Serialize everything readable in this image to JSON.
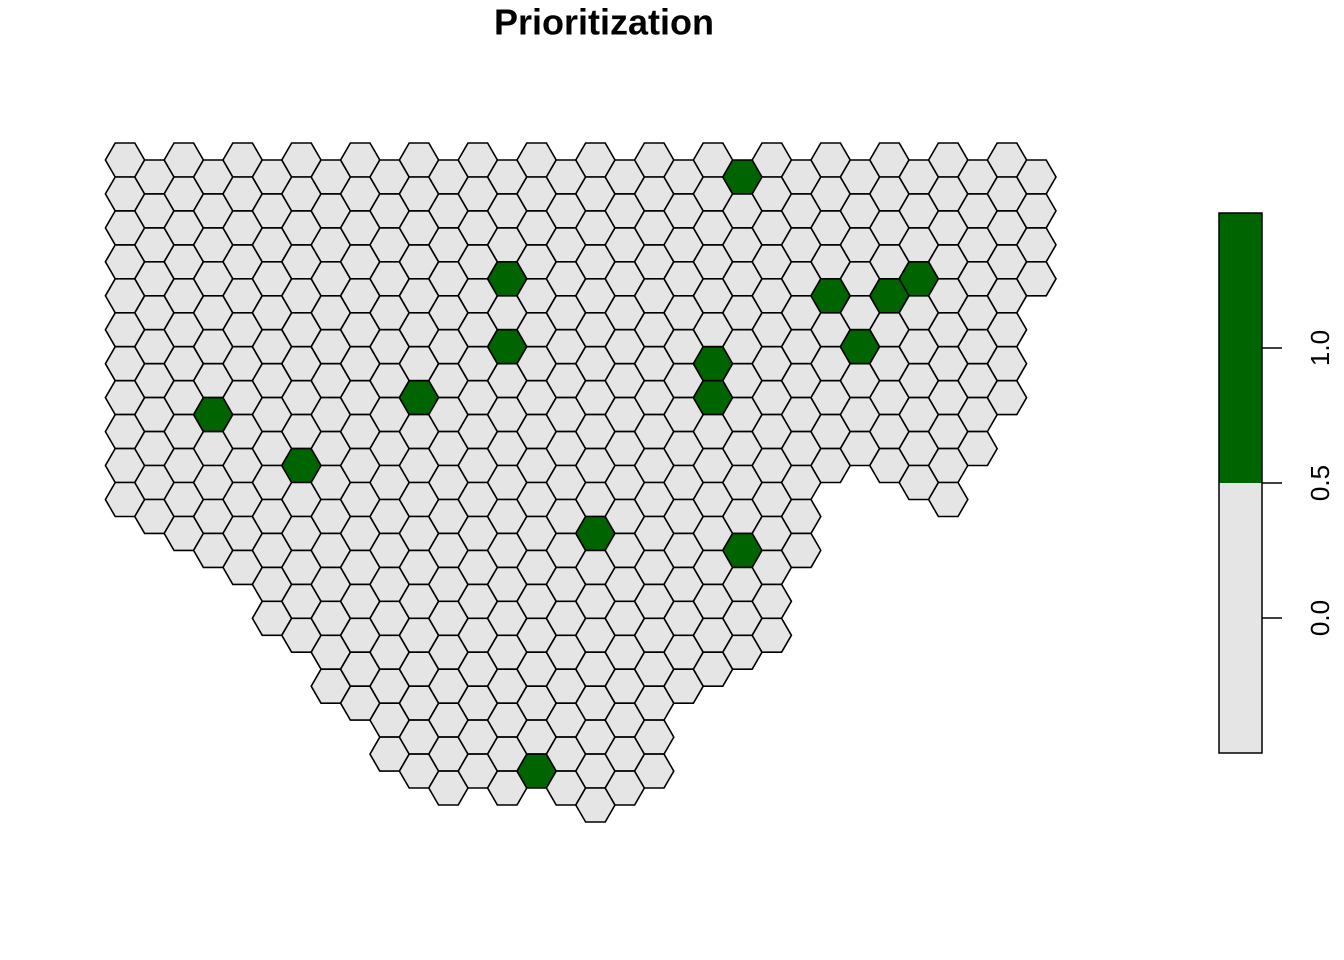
{
  "map": {
    "title": "Prioritization",
    "colors": [
      "#E5E5E5",
      "#006400"
    ],
    "cells": [
      [
        0,
        0,
        0,
        0,
        0,
        0,
        0,
        0,
        0,
        0,
        0
      ],
      [
        0,
        0,
        0,
        0,
        0,
        0,
        0,
        0,
        0,
        0,
        0
      ],
      [
        0,
        0,
        0,
        0,
        0,
        0,
        0,
        0,
        0,
        0,
        0,
        0
      ],
      [
        0,
        0,
        0,
        0,
        0,
        0,
        0,
        1,
        0,
        0,
        0,
        0
      ],
      [
        0,
        0,
        0,
        0,
        0,
        0,
        0,
        0,
        0,
        0,
        0,
        0,
        0
      ],
      [
        0,
        0,
        0,
        0,
        0,
        0,
        0,
        0,
        0,
        0,
        0,
        0,
        0,
        0
      ],
      [
        0,
        0,
        0,
        0,
        0,
        0,
        0,
        0,
        0,
        1,
        0,
        0,
        0,
        0,
        0
      ],
      [
        0,
        0,
        0,
        0,
        0,
        0,
        0,
        0,
        0,
        0,
        0,
        0,
        0,
        0,
        0,
        0
      ],
      [
        0,
        0,
        0,
        0,
        0,
        0,
        0,
        0,
        0,
        0,
        0,
        0,
        0,
        0,
        0,
        0,
        0
      ],
      [
        0,
        0,
        0,
        0,
        0,
        0,
        0,
        0,
        0,
        0,
        0,
        0,
        0,
        0,
        0,
        0,
        0,
        0
      ],
      [
        0,
        0,
        0,
        0,
        0,
        0,
        0,
        1,
        0,
        0,
        0,
        0,
        0,
        0,
        0,
        0,
        0,
        0,
        0
      ],
      [
        0,
        0,
        0,
        0,
        0,
        0,
        0,
        0,
        0,
        0,
        0,
        0,
        0,
        0,
        0,
        0,
        0,
        0,
        0
      ],
      [
        0,
        0,
        0,
        0,
        0,
        0,
        0,
        0,
        0,
        0,
        0,
        0,
        0,
        0,
        0,
        0,
        0,
        0,
        0
      ],
      [
        0,
        0,
        0,
        1,
        0,
        1,
        0,
        0,
        0,
        0,
        0,
        0,
        0,
        0,
        0,
        0,
        0,
        0,
        0
      ],
      [
        0,
        0,
        0,
        0,
        0,
        0,
        0,
        0,
        0,
        0,
        0,
        0,
        0,
        0,
        0,
        0,
        0,
        0,
        1
      ],
      [
        0,
        0,
        0,
        0,
        0,
        0,
        0,
        0,
        0,
        0,
        0,
        0,
        0,
        0,
        0,
        0,
        0,
        0,
        0
      ],
      [
        0,
        0,
        0,
        0,
        0,
        0,
        0,
        0,
        0,
        0,
        0,
        1,
        0,
        0,
        0,
        0,
        0,
        0,
        0,
        0
      ],
      [
        0,
        0,
        0,
        0,
        0,
        0,
        0,
        0,
        0,
        0,
        0,
        0,
        0,
        0,
        0,
        0,
        0,
        0,
        0
      ],
      [
        0,
        0,
        0,
        0,
        0,
        0,
        0,
        0,
        0,
        0,
        0,
        0,
        0,
        0,
        0,
        0,
        0,
        0,
        0
      ],
      [
        0,
        0,
        0,
        0,
        0,
        0,
        0,
        0,
        0,
        0,
        0,
        0,
        0,
        0,
        0,
        0
      ],
      [
        0,
        0,
        0,
        0,
        0,
        0,
        1,
        1,
        0,
        0,
        0,
        0,
        0,
        0,
        0,
        0
      ],
      [
        1,
        0,
        0,
        0,
        0,
        0,
        0,
        0,
        0,
        0,
        0,
        1,
        0,
        0,
        0
      ],
      [
        0,
        0,
        0,
        0,
        0,
        0,
        0,
        0,
        0,
        0,
        0,
        0,
        0,
        0,
        0
      ],
      [
        0,
        0,
        0,
        0,
        0,
        0,
        0,
        0,
        0,
        0,
        0,
        0
      ],
      [
        0,
        0,
        0,
        0,
        1,
        0,
        0,
        0,
        0,
        0
      ],
      [
        0,
        0,
        0,
        0,
        0,
        1,
        0,
        0,
        0
      ],
      [
        0,
        0,
        0,
        0,
        1,
        0,
        0,
        0,
        0,
        0
      ],
      [
        0,
        0,
        0,
        1,
        0,
        0,
        0,
        0,
        0,
        0
      ],
      [
        0,
        0,
        0,
        0,
        0,
        0,
        0,
        0,
        0,
        0,
        0
      ],
      [
        0,
        0,
        0,
        0,
        0,
        0,
        0,
        0,
        0
      ],
      [
        0,
        0,
        0,
        0,
        0,
        0,
        0,
        0
      ],
      [
        0,
        0,
        0,
        0
      ]
    ],
    "legend": {
      "lim": [
        -0.5,
        1.5
      ],
      "breaks": [
        0.5
      ],
      "ticks": [
        {
          "value": 0,
          "label": "0.0"
        },
        {
          "value": 0.5,
          "label": "0.5"
        },
        {
          "value": 1,
          "label": "1.0"
        }
      ]
    }
  }
}
